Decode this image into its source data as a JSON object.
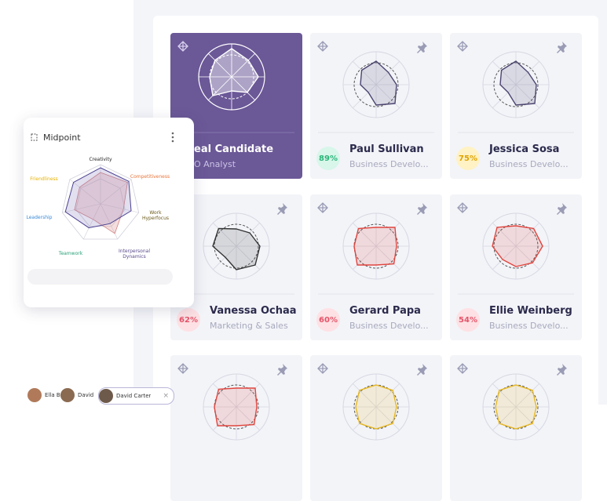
{
  "cards": [
    {
      "name": "eal Candidate",
      "role": "O Analyst",
      "radar_color": "#ffffff",
      "background": "#6b5897"
    },
    {
      "score": "89%",
      "name": "Paul Sullivan",
      "role": "Business Develo...",
      "badge_color": "#d8f6ea",
      "score_color": "#2db57a",
      "radar_color": "#4b4470",
      "background": "#f3f4f8"
    },
    {
      "score": "75%",
      "name": "Jessica Sosa",
      "role": "Business Develo...",
      "badge_color": "#fff2c4",
      "score_color": "#e0a400",
      "radar_color": "#4b4470",
      "background": "#f3f4f8"
    },
    {
      "score": "62%",
      "name": "Vanessa Ochaa",
      "role": "Marketing & Sales",
      "badge_color": "#fde1e4",
      "score_color": "#e4566b",
      "radar_color": "#333333",
      "background": "#f3f4f8"
    },
    {
      "score": "60%",
      "name": "Gerard Papa",
      "role": "Business Develo...",
      "badge_color": "#fde1e4",
      "score_color": "#e4566b",
      "radar_color": "#e0453e",
      "background": "#f3f4f8"
    },
    {
      "score": "54%",
      "name": "Ellie Weinberg",
      "role": "Business Develo...",
      "badge_color": "#fde1e4",
      "score_color": "#e4566b",
      "radar_color": "#e0453e",
      "background": "#f3f4f8"
    },
    {
      "radar_color": "#e0453e",
      "background": "#f3f4f8"
    },
    {
      "radar_color": "#e8b820",
      "background": "#f3f4f8"
    },
    {
      "radar_color": "#e8b820",
      "background": "#f3f4f8"
    }
  ],
  "panel": {
    "title": "Midpoint",
    "axes": [
      {
        "label": "Creativity",
        "color": "#222222"
      },
      {
        "label": "Competitiveness",
        "color": "#e8743b"
      },
      {
        "label": "Work Hyperfocus",
        "color": "#6b5a1a"
      },
      {
        "label": "Interpersonal Dynamics",
        "color": "#5a4a8a"
      },
      {
        "label": "Teamwork",
        "color": "#2aa07a"
      },
      {
        "label": "Leadership",
        "color": "#3a8ad6"
      },
      {
        "label": "Friendliness",
        "color": "#e6b200"
      }
    ],
    "chips": [
      "Ella Bu",
      "David",
      "David Carter"
    ]
  }
}
